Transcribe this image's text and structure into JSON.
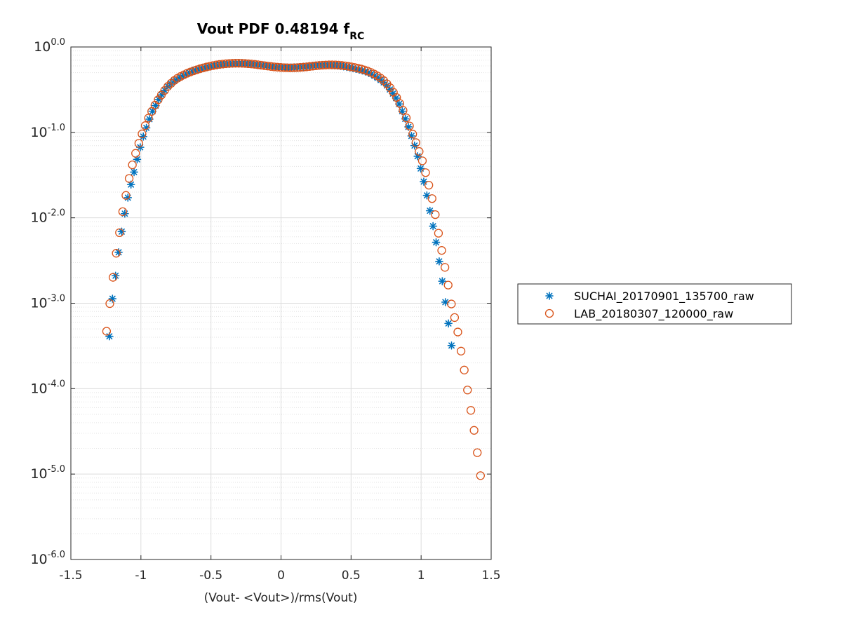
{
  "chart_data": {
    "type": "scatter",
    "title": "Vout PDF 0.48194 f",
    "title_subscript": "RC",
    "xlabel": "(Vout- <Vout>)/rms(Vout)",
    "ylabel": "",
    "xlim": [
      -1.5,
      1.5
    ],
    "ylim": [
      1e-06,
      1
    ],
    "yscale": "log",
    "grid": true,
    "minor_grid": true,
    "legend_position": "right-outside",
    "x_ticks": [
      -1.5,
      -1,
      -0.5,
      0,
      0.5,
      1,
      1.5
    ],
    "x_tick_labels": [
      "-1.5",
      "-1",
      "-0.5",
      "0",
      "0.5",
      "1",
      "1.5"
    ],
    "y_ticks": [
      -6,
      -5,
      -4,
      -3,
      -2,
      -1,
      0
    ],
    "y_tick_bases": [
      "10",
      "10",
      "10",
      "10",
      "10",
      "10",
      "10"
    ],
    "y_tick_exponents": [
      "-6.0",
      "-5.0",
      "-4.0",
      "-3.0",
      "-2.0",
      "-1.0",
      "0.0"
    ],
    "series": [
      {
        "name": "SUCHAI_20170901_135700_raw",
        "marker": "asterisk",
        "color": "#0072BD",
        "points": [
          [
            -1.225,
            0.00041
          ],
          [
            -1.203,
            0.00113
          ],
          [
            -1.181,
            0.0021
          ],
          [
            -1.159,
            0.00395
          ],
          [
            -1.137,
            0.0069
          ],
          [
            -1.115,
            0.0112
          ],
          [
            -1.093,
            0.0172
          ],
          [
            -1.071,
            0.0245
          ],
          [
            -1.049,
            0.0343
          ],
          [
            -1.027,
            0.0483
          ],
          [
            -1.005,
            0.0669
          ],
          [
            -0.983,
            0.0893
          ],
          [
            -0.961,
            0.113
          ],
          [
            -0.939,
            0.143
          ],
          [
            -0.917,
            0.177
          ],
          [
            -0.895,
            0.206
          ],
          [
            -0.873,
            0.243
          ],
          [
            -0.851,
            0.275
          ],
          [
            -0.829,
            0.31
          ],
          [
            -0.807,
            0.345
          ],
          [
            -0.785,
            0.371
          ],
          [
            -0.763,
            0.399
          ],
          [
            -0.741,
            0.423
          ],
          [
            -0.719,
            0.445
          ],
          [
            -0.697,
            0.466
          ],
          [
            -0.675,
            0.483
          ],
          [
            -0.653,
            0.502
          ],
          [
            -0.631,
            0.52
          ],
          [
            -0.609,
            0.533
          ],
          [
            -0.587,
            0.549
          ],
          [
            -0.565,
            0.56
          ],
          [
            -0.543,
            0.572
          ],
          [
            -0.521,
            0.584
          ],
          [
            -0.499,
            0.595
          ],
          [
            -0.477,
            0.604
          ],
          [
            -0.455,
            0.61
          ],
          [
            -0.433,
            0.619
          ],
          [
            -0.411,
            0.625
          ],
          [
            -0.389,
            0.631
          ],
          [
            -0.367,
            0.634
          ],
          [
            -0.345,
            0.638
          ],
          [
            -0.323,
            0.64
          ],
          [
            -0.301,
            0.64
          ],
          [
            -0.279,
            0.64
          ],
          [
            -0.257,
            0.638
          ],
          [
            -0.235,
            0.636
          ],
          [
            -0.213,
            0.632
          ],
          [
            -0.191,
            0.628
          ],
          [
            -0.169,
            0.622
          ],
          [
            -0.147,
            0.616
          ],
          [
            -0.125,
            0.61
          ],
          [
            -0.103,
            0.604
          ],
          [
            -0.081,
            0.597
          ],
          [
            -0.059,
            0.591
          ],
          [
            -0.037,
            0.585
          ],
          [
            -0.015,
            0.581
          ],
          [
            0.007,
            0.578
          ],
          [
            0.029,
            0.576
          ],
          [
            0.051,
            0.575
          ],
          [
            0.073,
            0.575
          ],
          [
            0.095,
            0.577
          ],
          [
            0.117,
            0.579
          ],
          [
            0.139,
            0.583
          ],
          [
            0.161,
            0.587
          ],
          [
            0.183,
            0.592
          ],
          [
            0.205,
            0.597
          ],
          [
            0.227,
            0.602
          ],
          [
            0.249,
            0.606
          ],
          [
            0.271,
            0.61
          ],
          [
            0.293,
            0.612
          ],
          [
            0.315,
            0.614
          ],
          [
            0.337,
            0.614
          ],
          [
            0.359,
            0.613
          ],
          [
            0.381,
            0.61
          ],
          [
            0.403,
            0.606
          ],
          [
            0.425,
            0.6
          ],
          [
            0.447,
            0.592
          ],
          [
            0.469,
            0.583
          ],
          [
            0.491,
            0.574
          ],
          [
            0.513,
            0.564
          ],
          [
            0.535,
            0.554
          ],
          [
            0.557,
            0.543
          ],
          [
            0.579,
            0.531
          ],
          [
            0.601,
            0.518
          ],
          [
            0.623,
            0.503
          ],
          [
            0.645,
            0.483
          ],
          [
            0.667,
            0.459
          ],
          [
            0.689,
            0.436
          ],
          [
            0.711,
            0.411
          ],
          [
            0.733,
            0.385
          ],
          [
            0.755,
            0.354
          ],
          [
            0.777,
            0.318
          ],
          [
            0.799,
            0.285
          ],
          [
            0.821,
            0.252
          ],
          [
            0.843,
            0.215
          ],
          [
            0.865,
            0.177
          ],
          [
            0.887,
            0.144
          ],
          [
            0.909,
            0.116
          ],
          [
            0.931,
            0.0909
          ],
          [
            0.953,
            0.0701
          ],
          [
            0.975,
            0.0526
          ],
          [
            0.997,
            0.0378
          ],
          [
            1.019,
            0.0265
          ],
          [
            1.041,
            0.0183
          ],
          [
            1.063,
            0.0121
          ],
          [
            1.085,
            0.00798
          ],
          [
            1.107,
            0.00517
          ],
          [
            1.129,
            0.00309
          ],
          [
            1.151,
            0.00181
          ],
          [
            1.173,
            0.00103
          ],
          [
            1.195,
            0.00058
          ],
          [
            1.217,
            0.00032
          ]
        ]
      },
      {
        "name": "LAB_20180307_120000_raw",
        "marker": "circle",
        "color": "#D95319",
        "points": [
          [
            -1.245,
            0.00047
          ],
          [
            -1.222,
            0.00099
          ],
          [
            -1.199,
            0.00201
          ],
          [
            -1.176,
            0.00385
          ],
          [
            -1.153,
            0.0067
          ],
          [
            -1.13,
            0.0118
          ],
          [
            -1.107,
            0.0183
          ],
          [
            -1.084,
            0.0289
          ],
          [
            -1.061,
            0.0417
          ],
          [
            -1.038,
            0.0569
          ],
          [
            -1.015,
            0.0745
          ],
          [
            -0.992,
            0.0961
          ],
          [
            -0.969,
            0.12
          ],
          [
            -0.946,
            0.147
          ],
          [
            -0.923,
            0.176
          ],
          [
            -0.9,
            0.208
          ],
          [
            -0.877,
            0.241
          ],
          [
            -0.854,
            0.274
          ],
          [
            -0.831,
            0.31
          ],
          [
            -0.808,
            0.345
          ],
          [
            -0.785,
            0.375
          ],
          [
            -0.762,
            0.405
          ],
          [
            -0.739,
            0.43
          ],
          [
            -0.716,
            0.452
          ],
          [
            -0.693,
            0.473
          ],
          [
            -0.67,
            0.492
          ],
          [
            -0.647,
            0.51
          ],
          [
            -0.624,
            0.526
          ],
          [
            -0.601,
            0.541
          ],
          [
            -0.578,
            0.556
          ],
          [
            -0.555,
            0.57
          ],
          [
            -0.532,
            0.583
          ],
          [
            -0.509,
            0.595
          ],
          [
            -0.486,
            0.606
          ],
          [
            -0.463,
            0.616
          ],
          [
            -0.44,
            0.624
          ],
          [
            -0.417,
            0.631
          ],
          [
            -0.394,
            0.637
          ],
          [
            -0.371,
            0.641
          ],
          [
            -0.348,
            0.644
          ],
          [
            -0.325,
            0.645
          ],
          [
            -0.302,
            0.645
          ],
          [
            -0.279,
            0.644
          ],
          [
            -0.256,
            0.641
          ],
          [
            -0.233,
            0.637
          ],
          [
            -0.21,
            0.632
          ],
          [
            -0.187,
            0.626
          ],
          [
            -0.164,
            0.619
          ],
          [
            -0.141,
            0.612
          ],
          [
            -0.118,
            0.605
          ],
          [
            -0.095,
            0.598
          ],
          [
            -0.072,
            0.591
          ],
          [
            -0.049,
            0.585
          ],
          [
            -0.026,
            0.58
          ],
          [
            -0.003,
            0.576
          ],
          [
            0.02,
            0.573
          ],
          [
            0.043,
            0.571
          ],
          [
            0.066,
            0.57
          ],
          [
            0.089,
            0.571
          ],
          [
            0.112,
            0.573
          ],
          [
            0.135,
            0.576
          ],
          [
            0.158,
            0.58
          ],
          [
            0.181,
            0.585
          ],
          [
            0.204,
            0.591
          ],
          [
            0.227,
            0.597
          ],
          [
            0.25,
            0.603
          ],
          [
            0.273,
            0.608
          ],
          [
            0.296,
            0.612
          ],
          [
            0.319,
            0.615
          ],
          [
            0.342,
            0.617
          ],
          [
            0.365,
            0.617
          ],
          [
            0.388,
            0.616
          ],
          [
            0.411,
            0.613
          ],
          [
            0.434,
            0.608
          ],
          [
            0.457,
            0.602
          ],
          [
            0.48,
            0.594
          ],
          [
            0.503,
            0.585
          ],
          [
            0.526,
            0.575
          ],
          [
            0.549,
            0.564
          ],
          [
            0.572,
            0.552
          ],
          [
            0.595,
            0.538
          ],
          [
            0.618,
            0.522
          ],
          [
            0.641,
            0.504
          ],
          [
            0.664,
            0.483
          ],
          [
            0.687,
            0.459
          ],
          [
            0.71,
            0.433
          ],
          [
            0.733,
            0.404
          ],
          [
            0.756,
            0.37
          ],
          [
            0.779,
            0.333
          ],
          [
            0.802,
            0.295
          ],
          [
            0.825,
            0.256
          ],
          [
            0.848,
            0.218
          ],
          [
            0.871,
            0.181
          ],
          [
            0.894,
            0.148
          ],
          [
            0.917,
            0.119
          ],
          [
            0.94,
            0.0954
          ],
          [
            0.963,
            0.0759
          ],
          [
            0.986,
            0.0598
          ],
          [
            1.009,
            0.0465
          ],
          [
            1.032,
            0.0338
          ],
          [
            1.055,
            0.0241
          ],
          [
            1.078,
            0.0168
          ],
          [
            1.101,
            0.0109
          ],
          [
            1.124,
            0.0066
          ],
          [
            1.147,
            0.00415
          ],
          [
            1.17,
            0.00263
          ],
          [
            1.193,
            0.00163
          ],
          [
            1.216,
            0.00098
          ],
          [
            1.239,
            0.00068
          ],
          [
            1.262,
            0.00046
          ],
          [
            1.285,
            0.000275
          ],
          [
            1.308,
            0.000165
          ],
          [
            1.331,
            9.64e-05
          ],
          [
            1.355,
            5.57e-05
          ],
          [
            1.378,
            3.25e-05
          ],
          [
            1.401,
            1.78e-05
          ],
          [
            1.424,
            9.58e-06
          ]
        ]
      }
    ]
  }
}
